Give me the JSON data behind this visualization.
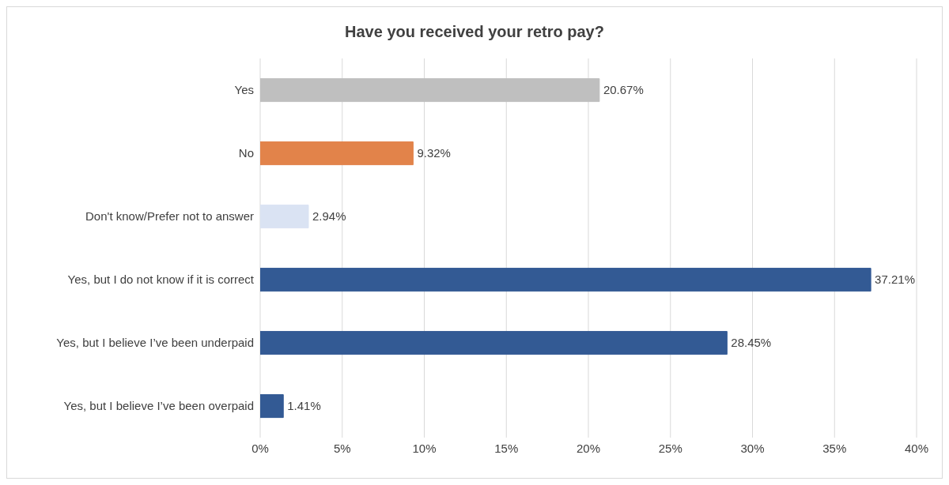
{
  "chart_data": {
    "type": "bar",
    "orientation": "horizontal",
    "title": "Have you received your retro pay?",
    "categories": [
      "Yes",
      "No",
      "Don't know/Prefer not to answer",
      "Yes, but I do not know if it is correct",
      "Yes, but I believe I’ve been underpaid",
      "Yes, but I believe I’ve been overpaid"
    ],
    "values": [
      20.67,
      9.32,
      2.94,
      37.21,
      28.45,
      1.41
    ],
    "colors": [
      "#bfbfbf",
      "#e2834a",
      "#dae3f3",
      "#335a94",
      "#335a94",
      "#335a94"
    ],
    "value_labels": [
      "20.67%",
      "9.32%",
      "2.94%",
      "37.21%",
      "28.45%",
      "1.41%"
    ],
    "xlim": [
      0,
      40
    ],
    "xticks": [
      {
        "value": 0,
        "label": "0%"
      },
      {
        "value": 5,
        "label": "5%"
      },
      {
        "value": 10,
        "label": "10%"
      },
      {
        "value": 15,
        "label": "15%"
      },
      {
        "value": 20,
        "label": "20%"
      },
      {
        "value": 25,
        "label": "25%"
      },
      {
        "value": 30,
        "label": "30%"
      },
      {
        "value": 35,
        "label": "35%"
      },
      {
        "value": 40,
        "label": "40%"
      }
    ],
    "grid": "x"
  }
}
